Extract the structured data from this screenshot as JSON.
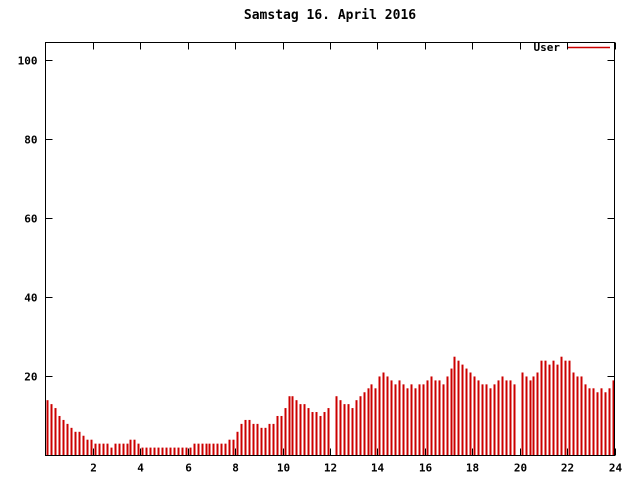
{
  "title": "Samstag 16. April 2016",
  "legend": {
    "label": "User",
    "color": "#cc0000"
  },
  "chart_data": {
    "type": "bar",
    "title": "Samstag 16. April 2016",
    "xlabel": "",
    "ylabel": "",
    "xlim": [
      0,
      24
    ],
    "ylim": [
      0,
      104.5
    ],
    "xticks": [
      2,
      4,
      6,
      8,
      10,
      12,
      14,
      16,
      18,
      20,
      22,
      24
    ],
    "yticks": [
      20,
      40,
      60,
      80,
      100
    ],
    "grid": false,
    "legend_position": "top-right",
    "series": [
      {
        "name": "User",
        "color": "#cc0000",
        "x_step_hours": 0.1666667,
        "values": [
          14,
          13,
          12,
          10,
          9,
          8,
          7,
          6,
          6,
          5,
          4,
          4,
          3,
          3,
          3,
          3,
          2,
          3,
          3,
          3,
          3,
          4,
          4,
          3,
          2,
          2,
          2,
          2,
          2,
          2,
          2,
          2,
          2,
          2,
          2,
          2,
          2,
          3,
          3,
          3,
          3,
          3,
          3,
          3,
          3,
          3,
          4,
          4,
          6,
          8,
          9,
          9,
          8,
          8,
          7,
          7,
          8,
          8,
          10,
          10,
          12,
          15,
          15,
          14,
          13,
          13,
          12,
          11,
          11,
          10,
          11,
          12,
          0,
          15,
          14,
          13,
          13,
          12,
          14,
          15,
          16,
          17,
          18,
          17,
          20,
          21,
          20,
          19,
          18,
          19,
          18,
          17,
          18,
          17,
          18,
          18,
          19,
          20,
          19,
          19,
          18,
          20,
          22,
          25,
          24,
          23,
          22,
          21,
          20,
          19,
          18,
          18,
          17,
          18,
          19,
          20,
          19,
          19,
          18,
          0,
          21,
          20,
          19,
          20,
          21,
          24,
          24,
          23,
          24,
          23,
          25,
          24,
          24,
          21,
          20,
          20,
          18,
          17,
          17,
          16,
          17,
          16,
          17,
          19
        ]
      }
    ]
  }
}
